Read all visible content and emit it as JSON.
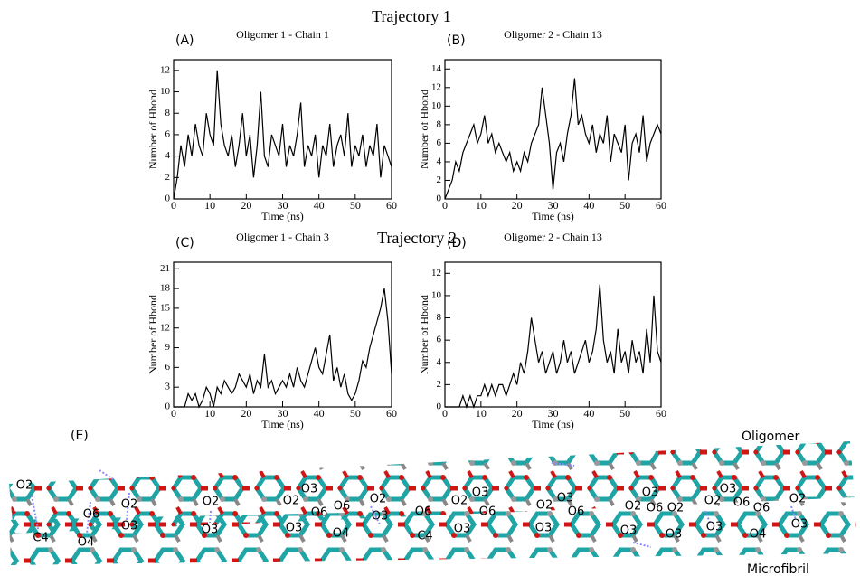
{
  "chart_data": [
    {
      "type": "line",
      "panel_label": "(A)",
      "title": "Oligomer 1 - Chain 1",
      "xlabel": "Time (ns)",
      "ylabel": "Number of Hbond",
      "color": "#000000",
      "x": [
        0,
        1,
        2,
        3,
        4,
        5,
        6,
        7,
        8,
        9,
        10,
        11,
        12,
        13,
        14,
        15,
        16,
        17,
        18,
        19,
        20,
        21,
        22,
        23,
        24,
        25,
        26,
        27,
        28,
        29,
        30,
        31,
        32,
        33,
        34,
        35,
        36,
        37,
        38,
        39,
        40,
        41,
        42,
        43,
        44,
        45,
        46,
        47,
        48,
        49,
        50,
        51,
        52,
        53,
        54,
        55,
        56,
        57,
        58,
        59,
        60
      ],
      "values": [
        0,
        2,
        5,
        3,
        6,
        4,
        7,
        5,
        4,
        8,
        6,
        5,
        12,
        7,
        5,
        4,
        6,
        3,
        5,
        8,
        4,
        6,
        2,
        5,
        10,
        4,
        3,
        6,
        5,
        4,
        7,
        3,
        5,
        4,
        6,
        9,
        3,
        5,
        4,
        6,
        2,
        5,
        4,
        7,
        3,
        5,
        6,
        4,
        8,
        3,
        5,
        4,
        6,
        3,
        5,
        4,
        7,
        2,
        5,
        4,
        3
      ],
      "xlim": [
        0,
        60
      ],
      "ylim": [
        0,
        13
      ],
      "xticks": [
        0,
        10,
        20,
        30,
        40,
        50,
        60
      ],
      "yticks": [
        0,
        2,
        4,
        6,
        8,
        10,
        12
      ]
    },
    {
      "type": "line",
      "panel_label": "(B)",
      "title": "Oligomer 2 - Chain 13",
      "xlabel": "Time (ns)",
      "ylabel": "Number of Hbond",
      "color": "#000000",
      "x": [
        0,
        1,
        2,
        3,
        4,
        5,
        6,
        7,
        8,
        9,
        10,
        11,
        12,
        13,
        14,
        15,
        16,
        17,
        18,
        19,
        20,
        21,
        22,
        23,
        24,
        25,
        26,
        27,
        28,
        29,
        30,
        31,
        32,
        33,
        34,
        35,
        36,
        37,
        38,
        39,
        40,
        41,
        42,
        43,
        44,
        45,
        46,
        47,
        48,
        49,
        50,
        51,
        52,
        53,
        54,
        55,
        56,
        57,
        58,
        59,
        60
      ],
      "values": [
        0,
        1,
        2,
        4,
        3,
        5,
        6,
        7,
        8,
        6,
        7,
        9,
        6,
        7,
        5,
        6,
        5,
        4,
        5,
        3,
        4,
        3,
        5,
        4,
        6,
        7,
        8,
        12,
        9,
        6,
        1,
        5,
        6,
        4,
        7,
        9,
        13,
        8,
        9,
        7,
        6,
        8,
        5,
        7,
        6,
        9,
        4,
        7,
        6,
        5,
        8,
        2,
        6,
        7,
        5,
        9,
        4,
        6,
        7,
        8,
        7
      ],
      "xlim": [
        0,
        60
      ],
      "ylim": [
        0,
        15
      ],
      "xticks": [
        0,
        10,
        20,
        30,
        40,
        50,
        60
      ],
      "yticks": [
        0,
        2,
        4,
        6,
        8,
        10,
        12,
        14
      ]
    },
    {
      "type": "line",
      "panel_label": "(C)",
      "title": "Oligomer 1 - Chain 3",
      "xlabel": "Time (ns)",
      "ylabel": "Number of Hbond",
      "color": "#000000",
      "x": [
        0,
        1,
        2,
        3,
        4,
        5,
        6,
        7,
        8,
        9,
        10,
        11,
        12,
        13,
        14,
        15,
        16,
        17,
        18,
        19,
        20,
        21,
        22,
        23,
        24,
        25,
        26,
        27,
        28,
        29,
        30,
        31,
        32,
        33,
        34,
        35,
        36,
        37,
        38,
        39,
        40,
        41,
        42,
        43,
        44,
        45,
        46,
        47,
        48,
        49,
        50,
        51,
        52,
        53,
        54,
        55,
        56,
        57,
        58,
        59,
        60
      ],
      "values": [
        0,
        0,
        0,
        0,
        2,
        1,
        2,
        0,
        1,
        3,
        2,
        0,
        3,
        2,
        4,
        3,
        2,
        3,
        5,
        4,
        3,
        5,
        2,
        4,
        3,
        8,
        3,
        4,
        2,
        3,
        4,
        3,
        5,
        3,
        6,
        4,
        3,
        5,
        7,
        9,
        6,
        5,
        8,
        11,
        4,
        6,
        3,
        5,
        2,
        1,
        2,
        4,
        7,
        6,
        9,
        11,
        13,
        15,
        18,
        13,
        5
      ],
      "xlim": [
        0,
        60
      ],
      "ylim": [
        0,
        22
      ],
      "xticks": [
        0,
        10,
        20,
        30,
        40,
        50,
        60
      ],
      "yticks": [
        0,
        3,
        6,
        9,
        12,
        15,
        18,
        21
      ]
    },
    {
      "type": "line",
      "panel_label": "(D)",
      "title": "Oligomer 2 - Chain 13",
      "xlabel": "Time (ns)",
      "ylabel": "Number of Hbond",
      "color": "#000000",
      "x": [
        0,
        1,
        2,
        3,
        4,
        5,
        6,
        7,
        8,
        9,
        10,
        11,
        12,
        13,
        14,
        15,
        16,
        17,
        18,
        19,
        20,
        21,
        22,
        23,
        24,
        25,
        26,
        27,
        28,
        29,
        30,
        31,
        32,
        33,
        34,
        35,
        36,
        37,
        38,
        39,
        40,
        41,
        42,
        43,
        44,
        45,
        46,
        47,
        48,
        49,
        50,
        51,
        52,
        53,
        54,
        55,
        56,
        57,
        58,
        59,
        60
      ],
      "values": [
        0,
        0,
        0,
        0,
        0,
        1,
        0,
        1,
        0,
        1,
        1,
        2,
        1,
        2,
        1,
        2,
        2,
        1,
        2,
        3,
        2,
        4,
        3,
        5,
        8,
        6,
        4,
        5,
        3,
        4,
        5,
        3,
        4,
        6,
        4,
        5,
        3,
        4,
        5,
        6,
        4,
        5,
        7,
        11,
        6,
        4,
        5,
        3,
        7,
        4,
        5,
        3,
        6,
        4,
        5,
        3,
        7,
        4,
        10,
        5,
        4
      ],
      "xlim": [
        0,
        60
      ],
      "ylim": [
        0,
        13
      ],
      "xticks": [
        0,
        10,
        20,
        30,
        40,
        50,
        60
      ],
      "yticks": [
        0,
        2,
        4,
        6,
        8,
        10,
        12
      ]
    }
  ],
  "figure": {
    "trajectory_1": "Trajectory 1",
    "trajectory_2": "Trajectory 2",
    "panel_e": {
      "label": "(E)",
      "oligomer": "Oligomer",
      "microfibril": "Microfibril",
      "atoms": [
        "O2",
        "C4",
        "O6",
        "O4",
        "O2",
        "O3",
        "O2",
        "O3",
        "O3",
        "O2",
        "O6",
        "O6",
        "O3",
        "O4",
        "O2",
        "O3",
        "O6",
        "C4",
        "O2",
        "O3",
        "O6",
        "O3",
        "O2",
        "O3",
        "O6",
        "O3",
        "O3",
        "O2",
        "O6",
        "O2",
        "O3",
        "O3",
        "O3",
        "O2",
        "O6",
        "O6",
        "O3",
        "O4",
        "O2",
        "O3"
      ]
    }
  }
}
